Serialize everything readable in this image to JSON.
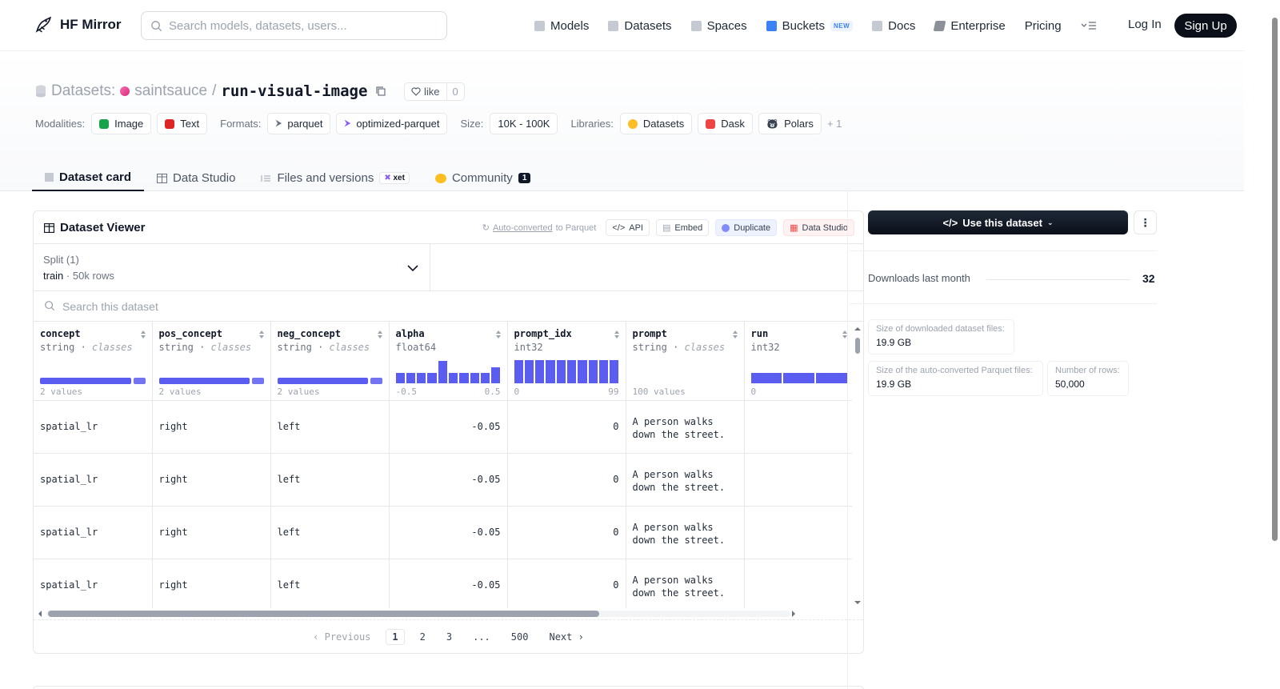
{
  "nav": {
    "brand": "HF Mirror",
    "search_placeholder": "Search models, datasets, users...",
    "links": [
      {
        "label": "Models",
        "icon": "cube-icon",
        "color": "#9ca3af"
      },
      {
        "label": "Datasets",
        "icon": "database-icon",
        "color": "#9ca3af"
      },
      {
        "label": "Spaces",
        "icon": "grid-icon",
        "color": "#9ca3af"
      },
      {
        "label": "Buckets",
        "icon": "bucket-icon",
        "color": "#3b82f6"
      },
      {
        "label": "Docs",
        "icon": "book-icon",
        "color": "#9ca3af"
      },
      {
        "label": "Enterprise",
        "icon": "enterprise-icon",
        "color": "#6b7280"
      },
      {
        "label": "Pricing"
      }
    ],
    "buckets_badge": "NEW",
    "login": "Log In",
    "signup": "Sign Up"
  },
  "header": {
    "section": "Datasets:",
    "owner": "saintsauce",
    "separator": "/",
    "repo": "run-visual-image",
    "like_label": "like",
    "like_count": "0",
    "modalities_label": "Modalities:",
    "modalities": [
      "Image",
      "Text"
    ],
    "formats_label": "Formats:",
    "formats": [
      "parquet",
      "optimized-parquet"
    ],
    "size_label": "Size:",
    "size": "10K - 100K",
    "libraries_label": "Libraries:",
    "libraries": [
      "Datasets",
      "Dask",
      "Polars"
    ],
    "libraries_more": "+ 1"
  },
  "tabs": [
    {
      "label": "Dataset card",
      "active": true
    },
    {
      "label": "Data Studio"
    },
    {
      "label": "Files and versions",
      "badge": "xet"
    },
    {
      "label": "Community",
      "count": "1"
    }
  ],
  "viewer": {
    "title": "Dataset Viewer",
    "autoconv_link": "Auto-converted",
    "autoconv_rest": "to Parquet",
    "api": "API",
    "embed": "Embed",
    "duplicate": "Duplicate",
    "data_studio": "Data Studio",
    "split_label": "Split (1)",
    "split_value": "train",
    "split_rows": "50k rows",
    "search_placeholder": "Search this dataset",
    "columns": [
      {
        "name": "concept",
        "type": "string",
        "kind": "classes",
        "summary": "2 values",
        "chart": "bar"
      },
      {
        "name": "pos_concept",
        "type": "string",
        "kind": "classes",
        "summary": "2 values",
        "chart": "bar"
      },
      {
        "name": "neg_concept",
        "type": "string",
        "kind": "classes",
        "summary": "2 values",
        "chart": "bar"
      },
      {
        "name": "alpha",
        "type": "float64",
        "kind": "",
        "min": "-0.5",
        "max": "0.5",
        "chart": "hist",
        "hist": [
          0.45,
          0.45,
          0.45,
          0.45,
          0.95,
          0.45,
          0.45,
          0.45,
          0.45,
          0.7
        ]
      },
      {
        "name": "prompt_idx",
        "type": "int32",
        "kind": "",
        "min": "0",
        "max": "99",
        "chart": "hist",
        "hist": [
          1,
          1,
          1,
          1,
          1,
          1,
          1,
          1,
          1,
          1
        ]
      },
      {
        "name": "prompt",
        "type": "string",
        "kind": "classes",
        "summary": "100 values",
        "chart": "none"
      },
      {
        "name": "run",
        "type": "int32",
        "kind": "",
        "min": "0",
        "max": "",
        "chart": "hist",
        "hist": [
          0.45,
          0.45,
          0.45
        ]
      }
    ],
    "rows": [
      {
        "concept": "spatial_lr",
        "pos_concept": "right",
        "neg_concept": "left",
        "alpha": "-0.05",
        "prompt_idx": "0",
        "prompt": "A person walks down the street.",
        "run": ""
      },
      {
        "concept": "spatial_lr",
        "pos_concept": "right",
        "neg_concept": "left",
        "alpha": "-0.05",
        "prompt_idx": "0",
        "prompt": "A person walks down the street.",
        "run": ""
      },
      {
        "concept": "spatial_lr",
        "pos_concept": "right",
        "neg_concept": "left",
        "alpha": "-0.05",
        "prompt_idx": "0",
        "prompt": "A person walks down the street.",
        "run": ""
      },
      {
        "concept": "spatial_lr",
        "pos_concept": "right",
        "neg_concept": "left",
        "alpha": "-0.05",
        "prompt_idx": "0",
        "prompt": "A person walks down the street.",
        "run": ""
      }
    ],
    "pager": {
      "previous": "Previous",
      "pages": [
        "1",
        "2",
        "3",
        "...",
        "500"
      ],
      "current": "1",
      "next": "Next"
    }
  },
  "sidebar": {
    "use_button": "Use this dataset",
    "downloads_label": "Downloads last month",
    "downloads_value": "32",
    "stats": [
      {
        "key": "Size of downloaded dataset files:",
        "value": "19.9 GB"
      },
      {
        "key": "Size of the auto-converted Parquet files:",
        "value": "19.9 GB"
      },
      {
        "key": "Number of rows:",
        "value": "50,000"
      }
    ]
  },
  "colors": {
    "accent": "#5b5cf0",
    "dark_button": "#0b0f1a"
  }
}
